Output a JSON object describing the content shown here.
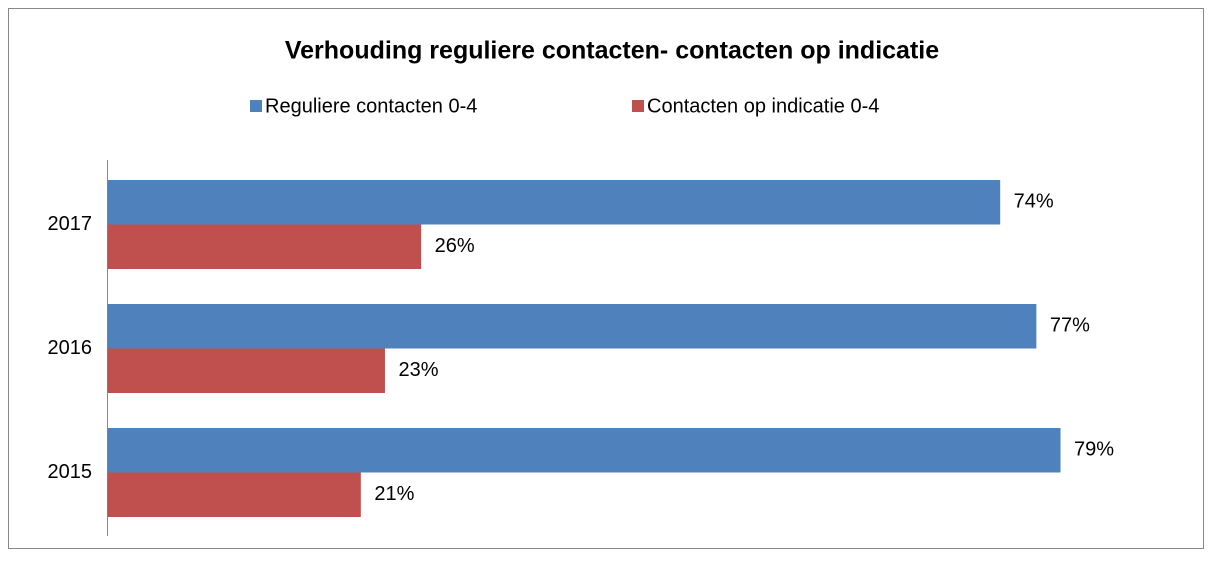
{
  "chart_data": {
    "type": "bar",
    "orientation": "horizontal",
    "title": "Verhouding reguliere contacten- contacten op indicatie",
    "categories": [
      "2017",
      "2016",
      "2015"
    ],
    "series": [
      {
        "name": "Reguliere contacten 0-4",
        "color": "#4f81bd",
        "values": [
          74,
          77,
          79
        ],
        "value_labels": [
          "74%",
          "77%",
          "79%"
        ]
      },
      {
        "name": "Contacten op indicatie 0-4",
        "color": "#c0504d",
        "values": [
          26,
          23,
          21
        ],
        "value_labels": [
          "26%",
          "23%",
          "21%"
        ]
      }
    ],
    "legend": "top"
  }
}
